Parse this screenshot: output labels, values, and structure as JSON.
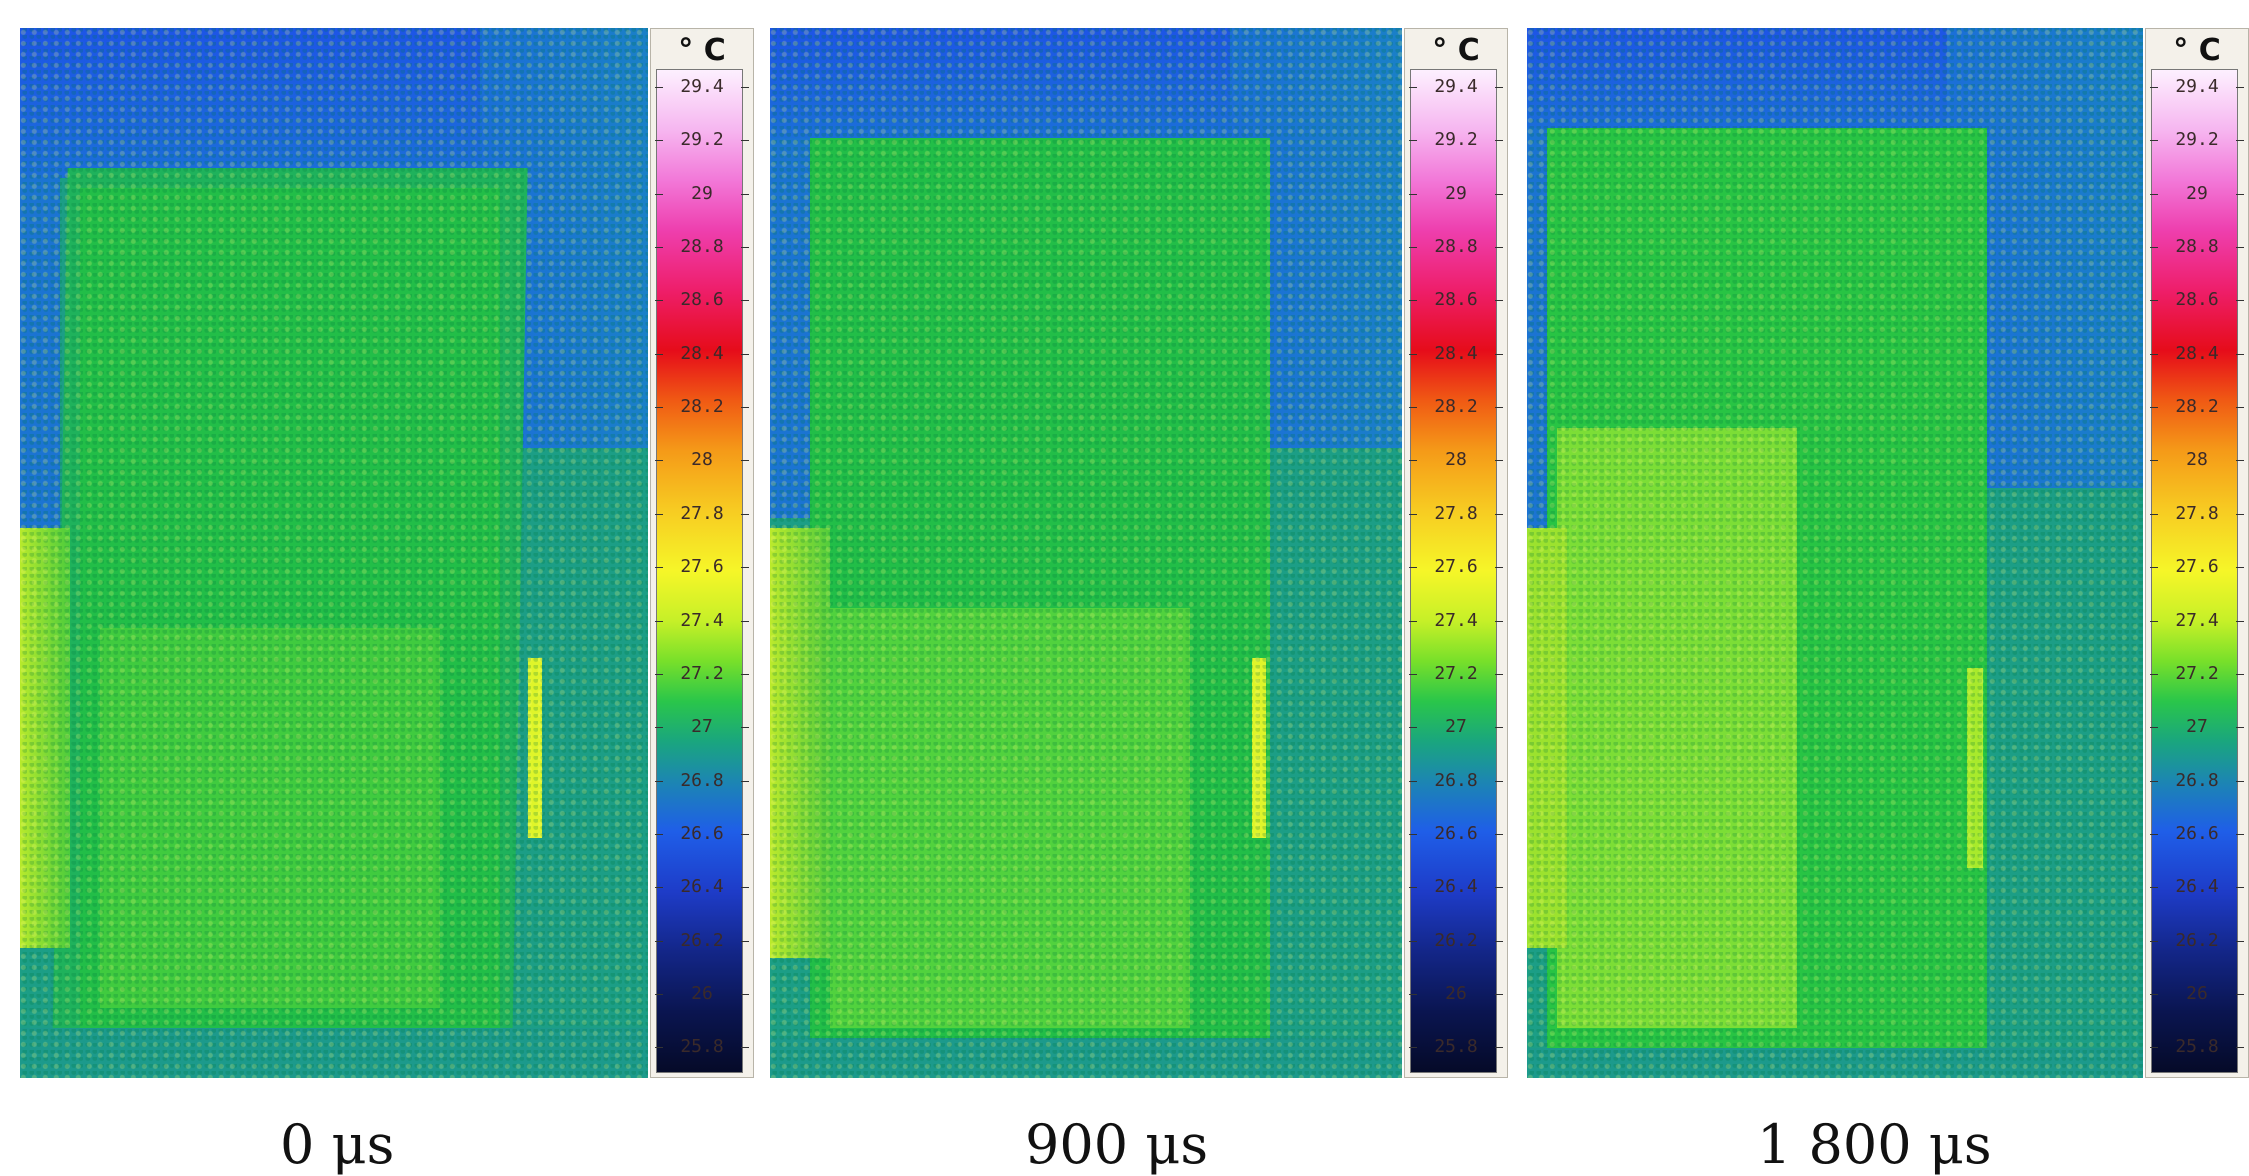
{
  "panels": [
    {
      "caption": "0 μs"
    },
    {
      "caption": "900 μs"
    },
    {
      "caption": "1 800 μs"
    }
  ],
  "colorbar": {
    "unit": "° C",
    "ticks": [
      "29.4",
      "29.2",
      "29",
      "28.8",
      "28.6",
      "28.4",
      "28.2",
      "28",
      "27.8",
      "27.6",
      "27.4",
      "27.2",
      "27",
      "26.8",
      "26.6",
      "26.4",
      "26.2",
      "26",
      "25.8"
    ]
  },
  "colors": {
    "background_blue": "#1a6ad8",
    "plate_green": "#2cc24a",
    "edge_teal": "#1c9e86",
    "hot_yellow": "#c6ef2c"
  }
}
